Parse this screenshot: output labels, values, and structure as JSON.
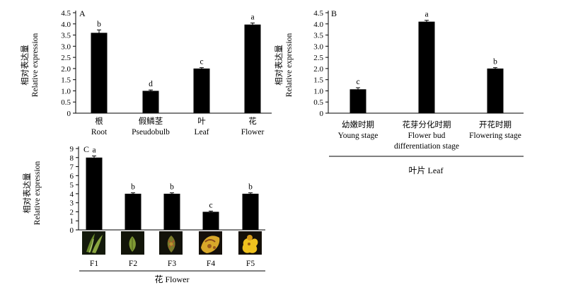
{
  "chart_data": [
    {
      "id": "A",
      "type": "bar",
      "panel_label": "A",
      "ylabel_cn": "相对表达量",
      "ylabel_en": "Relative expression",
      "ylim": [
        0,
        4.5
      ],
      "yticks": [
        "0",
        "0.5",
        "1.0",
        "1.5",
        "2.0",
        "2.5",
        "3.0",
        "3.5",
        "4.0",
        "4.5"
      ],
      "categories_cn": [
        "根",
        "假鳞茎",
        "叶",
        "花"
      ],
      "categories_en": [
        "Root",
        "Pseudobulb",
        "Leaf",
        "Flower"
      ],
      "values": [
        3.6,
        1.0,
        2.0,
        3.97
      ],
      "errors": [
        0.13,
        0.04,
        0.04,
        0.07
      ],
      "significance": [
        "b",
        "d",
        "c",
        "a"
      ]
    },
    {
      "id": "B",
      "type": "bar",
      "panel_label": "B",
      "ylabel_cn": "相对表达量",
      "ylabel_en": "Relative expression",
      "ylim": [
        0,
        4.5
      ],
      "yticks": [
        "0",
        "0.5",
        "1.0",
        "1.5",
        "2.0",
        "2.5",
        "3.0",
        "3.5",
        "4.0",
        "4.5"
      ],
      "categories_cn": [
        "幼嫩时期",
        "花芽分化时期",
        "开花时期"
      ],
      "categories_en": [
        [
          "Young stage"
        ],
        [
          "Flower bud",
          "differentiation stage"
        ],
        [
          "Flowering stage"
        ]
      ],
      "values": [
        1.07,
        4.1,
        2.0
      ],
      "errors": [
        0.07,
        0.06,
        0.04
      ],
      "significance": [
        "c",
        "a",
        "b"
      ],
      "group_label": "叶片 Leaf"
    },
    {
      "id": "C",
      "type": "bar",
      "panel_label": "C",
      "ylabel_cn": "相对表达量",
      "ylabel_en": "Relative expression",
      "ylim": [
        0,
        9
      ],
      "yticks": [
        "0",
        "1",
        "2",
        "3",
        "4",
        "5",
        "6",
        "7",
        "8",
        "9"
      ],
      "categories": [
        "F1",
        "F2",
        "F3",
        "F4",
        "F5"
      ],
      "values": [
        8.0,
        4.0,
        4.0,
        2.0,
        4.0
      ],
      "errors": [
        0.18,
        0.1,
        0.1,
        0.08,
        0.1
      ],
      "significance": [
        "a",
        "b",
        "b",
        "c",
        "b"
      ],
      "thumbnails": [
        "F1 flower-bud photo",
        "F2 flower-bud photo",
        "F3 flower-bud photo",
        "F4 flower photo",
        "F5 flower photo"
      ],
      "group_label": "花 Flower"
    }
  ]
}
